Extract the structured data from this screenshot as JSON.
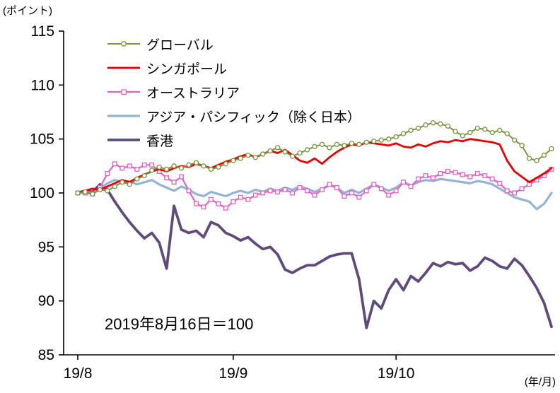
{
  "unit_label": "(ポイント)",
  "x_axis_unit": "(年/月)",
  "annotation": "2019年8月16日＝100",
  "chart_data": {
    "type": "line",
    "title": "",
    "xlabel": "年/月",
    "ylabel": "ポイント",
    "ylim": [
      85,
      115
    ],
    "y_ticks": [
      85,
      90,
      95,
      100,
      105,
      110,
      115
    ],
    "x_ticks": [
      {
        "label": "19/8",
        "index": 0
      },
      {
        "label": "19/9",
        "index": 21
      },
      {
        "label": "19/10",
        "index": 43
      }
    ],
    "grid": false,
    "legend_position": "top-left",
    "series": [
      {
        "name": "グローバル",
        "color": "#77933C",
        "width": 2,
        "marker": "circle",
        "values": [
          100.0,
          100.1,
          99.9,
          100.3,
          100.2,
          100.6,
          101.0,
          100.8,
          101.3,
          101.6,
          102.1,
          102.4,
          102.2,
          102.5,
          102.3,
          102.6,
          102.8,
          102.5,
          102.2,
          102.4,
          102.7,
          103.0,
          103.2,
          103.5,
          103.3,
          103.6,
          103.9,
          104.2,
          103.8,
          103.4,
          103.7,
          104.0,
          104.3,
          104.5,
          104.2,
          104.5,
          104.4,
          104.6,
          104.5,
          104.7,
          104.8,
          104.9,
          105.0,
          105.2,
          105.5,
          105.8,
          106.0,
          106.3,
          106.5,
          106.4,
          106.2,
          105.7,
          105.3,
          105.6,
          106.0,
          105.9,
          105.6,
          105.8,
          105.5,
          104.9,
          104.4,
          103.2,
          103.0,
          103.5,
          104.1
        ]
      },
      {
        "name": "シンガポール",
        "color": "#E60000",
        "width": 2.8,
        "marker": "none",
        "values": [
          100.0,
          100.2,
          100.4,
          100.3,
          100.6,
          100.9,
          101.2,
          101.0,
          101.4,
          101.7,
          102.0,
          102.2,
          102.0,
          102.3,
          102.5,
          102.4,
          102.7,
          102.5,
          102.3,
          102.6,
          102.9,
          103.1,
          103.4,
          103.6,
          103.3,
          103.6,
          103.9,
          103.7,
          104.0,
          103.5,
          103.0,
          102.8,
          103.2,
          102.7,
          103.3,
          103.8,
          104.2,
          104.5,
          104.4,
          104.7,
          104.6,
          104.5,
          104.4,
          104.6,
          104.3,
          104.2,
          104.5,
          104.3,
          104.6,
          104.8,
          104.7,
          104.9,
          104.8,
          105.0,
          104.9,
          104.8,
          104.7,
          104.5,
          103.0,
          102.0,
          101.5,
          101.0,
          101.4,
          101.8,
          102.3
        ]
      },
      {
        "name": "オーストラリア",
        "color": "#E55FC4",
        "width": 2.2,
        "marker": "square",
        "values": [
          100.0,
          100.0,
          99.9,
          100.5,
          101.8,
          102.7,
          102.3,
          102.5,
          102.2,
          102.6,
          102.6,
          102.0,
          101.4,
          101.0,
          101.5,
          100.2,
          99.0,
          98.7,
          99.4,
          99.0,
          98.6,
          99.2,
          99.6,
          99.4,
          99.8,
          100.0,
          100.2,
          100.1,
          100.3,
          100.0,
          100.5,
          100.2,
          99.8,
          100.3,
          100.8,
          100.5,
          99.7,
          100.0,
          99.6,
          100.2,
          100.8,
          100.4,
          99.8,
          100.2,
          101.0,
          100.6,
          101.3,
          101.6,
          101.4,
          101.8,
          102.0,
          101.9,
          101.7,
          101.5,
          101.8,
          101.6,
          101.3,
          100.9,
          100.2,
          100.0,
          100.4,
          100.8,
          101.2,
          101.6,
          102.2
        ]
      },
      {
        "name": "アジア・パシフィック（除く日本）",
        "color": "#95B3D7",
        "width": 3.2,
        "marker": "none",
        "values": [
          100.0,
          100.1,
          100.0,
          100.4,
          100.9,
          101.2,
          101.0,
          101.1,
          100.8,
          101.0,
          101.2,
          100.8,
          100.5,
          100.2,
          100.6,
          100.3,
          99.9,
          99.7,
          100.1,
          99.9,
          99.7,
          100.0,
          100.2,
          100.0,
          100.3,
          100.1,
          100.4,
          100.2,
          100.5,
          100.3,
          100.6,
          100.4,
          100.1,
          100.4,
          100.7,
          100.5,
          100.0,
          100.3,
          100.0,
          100.4,
          100.8,
          100.5,
          100.2,
          100.5,
          101.0,
          100.7,
          101.0,
          101.2,
          101.1,
          101.3,
          101.2,
          101.1,
          101.0,
          100.9,
          101.1,
          101.0,
          100.8,
          100.4,
          100.0,
          99.6,
          99.4,
          99.2,
          98.5,
          99.0,
          100.0
        ]
      },
      {
        "name": "香港",
        "color": "#604A7B",
        "width": 3.8,
        "marker": "none",
        "values": [
          100.0,
          100.2,
          100.1,
          100.8,
          100.3,
          99.2,
          98.2,
          97.3,
          96.5,
          95.8,
          96.3,
          95.4,
          93.0,
          98.8,
          96.6,
          96.3,
          96.5,
          95.9,
          97.3,
          97.0,
          96.3,
          96.0,
          95.6,
          95.9,
          95.3,
          94.8,
          95.0,
          94.3,
          92.9,
          92.6,
          93.0,
          93.3,
          93.3,
          93.7,
          94.1,
          94.3,
          94.4,
          94.4,
          92.0,
          87.5,
          90.0,
          89.3,
          91.0,
          92.0,
          91.0,
          92.3,
          91.8,
          92.6,
          93.5,
          93.2,
          93.6,
          93.4,
          93.5,
          92.8,
          93.2,
          94.0,
          93.7,
          93.2,
          93.0,
          93.9,
          93.3,
          92.3,
          91.2,
          89.8,
          87.6
        ]
      }
    ]
  }
}
